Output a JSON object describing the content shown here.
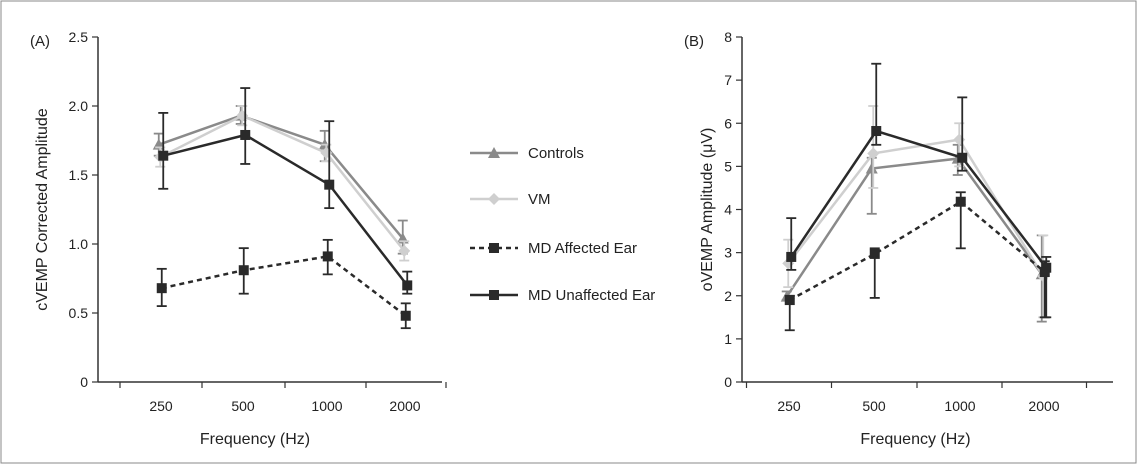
{
  "chart_data": [
    {
      "type": "line",
      "panel_label": "(A)",
      "xlabel": "Frequency (Hz)",
      "ylabel": "cVEMP Corrected Amplitude",
      "categories": [
        "250",
        "500",
        "1000",
        "2000"
      ],
      "ylim": [
        0,
        2.5
      ],
      "yticks": [
        "0",
        "0.5",
        "1.0",
        "1.5",
        "2.0",
        "2.5"
      ],
      "grid": false,
      "series": [
        {
          "name": "Controls",
          "values": [
            1.72,
            1.93,
            1.72,
            1.04
          ],
          "err_upper": [
            1.8,
            2.0,
            1.82,
            1.17
          ],
          "err_lower": [
            1.64,
            1.87,
            1.6,
            0.93
          ],
          "color": "#8a8a8a",
          "marker": "triangle",
          "dash": "solid"
        },
        {
          "name": "VM",
          "values": [
            1.63,
            1.93,
            1.66,
            0.95
          ],
          "err_upper": [
            1.7,
            2.0,
            1.72,
            1.02
          ],
          "err_lower": [
            1.56,
            1.86,
            1.6,
            0.88
          ],
          "color": "#cfcfcf",
          "marker": "diamond",
          "dash": "solid"
        },
        {
          "name": "MD Affected Ear",
          "values": [
            0.68,
            0.81,
            0.91,
            0.48
          ],
          "err_upper": [
            0.82,
            0.97,
            1.03,
            0.57
          ],
          "err_lower": [
            0.55,
            0.64,
            0.78,
            0.39
          ],
          "color": "#2a2a2a",
          "marker": "square",
          "dash": "dashed"
        },
        {
          "name": "MD Unaffected Ear",
          "values": [
            1.64,
            1.79,
            1.43,
            0.7
          ],
          "err_upper": [
            1.95,
            2.13,
            1.89,
            0.8
          ],
          "err_lower": [
            1.4,
            1.58,
            1.26,
            0.64
          ],
          "color": "#2a2a2a",
          "marker": "square",
          "dash": "solid"
        }
      ]
    },
    {
      "type": "line",
      "panel_label": "(B)",
      "xlabel": "Frequency (Hz)",
      "ylabel": "oVEMP Amplitude (μV)",
      "categories": [
        "250",
        "500",
        "1000",
        "2000"
      ],
      "ylim": [
        0,
        8
      ],
      "yticks": [
        "0",
        "1",
        "2",
        "3",
        "4",
        "5",
        "6",
        "7",
        "8"
      ],
      "grid": false,
      "series": [
        {
          "name": "Controls",
          "values": [
            1.98,
            4.95,
            5.18,
            2.5
          ],
          "err_upper": [
            2.1,
            5.2,
            5.5,
            3.4
          ],
          "err_lower": [
            1.9,
            3.9,
            4.8,
            1.4
          ],
          "color": "#8a8a8a",
          "marker": "triangle",
          "dash": "solid"
        },
        {
          "name": "VM",
          "values": [
            2.75,
            5.3,
            5.62,
            2.45
          ],
          "err_upper": [
            3.3,
            6.4,
            6.0,
            3.4
          ],
          "err_lower": [
            2.2,
            4.5,
            5.0,
            1.5
          ],
          "color": "#cfcfcf",
          "marker": "diamond",
          "dash": "solid"
        },
        {
          "name": "MD Affected Ear",
          "values": [
            1.9,
            2.97,
            4.18,
            2.55
          ],
          "err_upper": [
            2.0,
            3.1,
            4.4,
            2.8
          ],
          "err_lower": [
            1.2,
            1.95,
            3.1,
            1.5
          ],
          "color": "#2a2a2a",
          "marker": "square",
          "dash": "dashed"
        },
        {
          "name": "MD Unaffected Ear",
          "values": [
            2.9,
            5.82,
            5.2,
            2.65
          ],
          "err_upper": [
            3.8,
            7.38,
            6.6,
            2.9
          ],
          "err_lower": [
            2.6,
            5.5,
            4.9,
            1.5
          ],
          "color": "#2a2a2a",
          "marker": "square",
          "dash": "solid"
        }
      ]
    }
  ],
  "legend": {
    "placement": "between-panels",
    "items": [
      {
        "name": "Controls",
        "color": "#8a8a8a",
        "marker": "triangle",
        "dash": "solid"
      },
      {
        "name": "VM",
        "color": "#cfcfcf",
        "marker": "diamond",
        "dash": "solid"
      },
      {
        "name": "MD Affected Ear",
        "color": "#2a2a2a",
        "marker": "square",
        "dash": "dashed"
      },
      {
        "name": "MD Unaffected Ear",
        "color": "#2a2a2a",
        "marker": "square",
        "dash": "solid"
      }
    ]
  }
}
